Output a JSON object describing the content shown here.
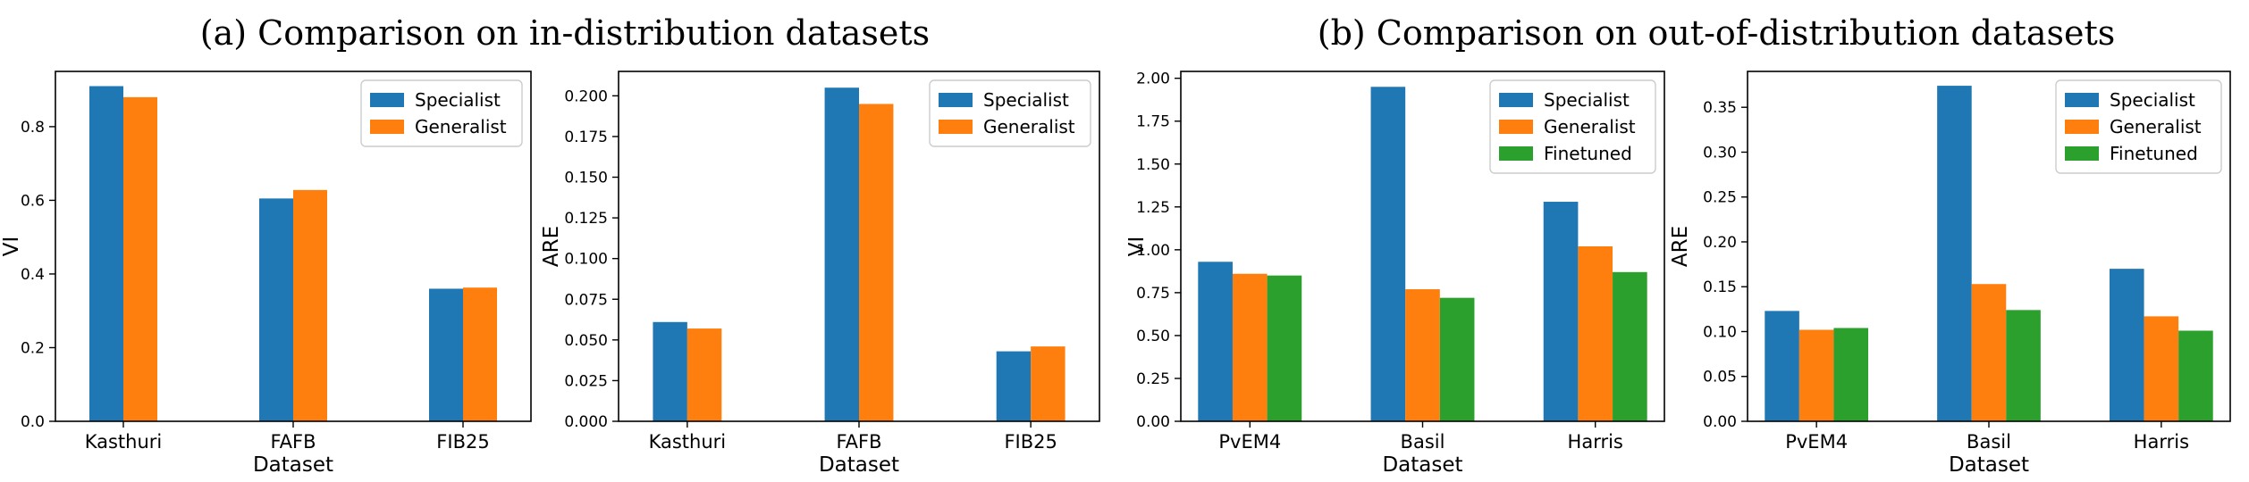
{
  "group_titles": {
    "a": "(a) Comparison on in-distribution datasets",
    "b": "(b) Comparison on out-of-distribution datasets"
  },
  "colors": {
    "Specialist": "#1f77b4",
    "Generalist": "#ff7f0e",
    "Finetuned": "#2ca02c"
  },
  "chart_data": [
    {
      "type": "bar",
      "title": "",
      "xlabel": "Dataset",
      "ylabel": "VI",
      "categories": [
        "Kasthuri",
        "FAFB",
        "FIB25"
      ],
      "ylim": [
        0,
        0.95
      ],
      "yticks": [
        0.0,
        0.2,
        0.4,
        0.6,
        0.8
      ],
      "ytick_labels": [
        "0.0",
        "0.2",
        "0.4",
        "0.6",
        "0.8"
      ],
      "legend_position": "top-right",
      "series": [
        {
          "name": "Specialist",
          "values": [
            0.91,
            0.605,
            0.36
          ]
        },
        {
          "name": "Generalist",
          "values": [
            0.88,
            0.628,
            0.363
          ]
        }
      ]
    },
    {
      "type": "bar",
      "title": "",
      "xlabel": "Dataset",
      "ylabel": "ARE",
      "categories": [
        "Kasthuri",
        "FAFB",
        "FIB25"
      ],
      "ylim": [
        0,
        0.215
      ],
      "yticks": [
        0.0,
        0.025,
        0.05,
        0.075,
        0.1,
        0.125,
        0.15,
        0.175,
        0.2
      ],
      "ytick_labels": [
        "0.000",
        "0.025",
        "0.050",
        "0.075",
        "0.100",
        "0.125",
        "0.150",
        "0.175",
        "0.200"
      ],
      "legend_position": "top-right",
      "series": [
        {
          "name": "Specialist",
          "values": [
            0.061,
            0.205,
            0.043
          ]
        },
        {
          "name": "Generalist",
          "values": [
            0.057,
            0.195,
            0.046
          ]
        }
      ]
    },
    {
      "type": "bar",
      "title": "",
      "xlabel": "Dataset",
      "ylabel": "VI",
      "categories": [
        "PvEM4",
        "Basil",
        "Harris"
      ],
      "ylim": [
        0,
        2.04
      ],
      "yticks": [
        0.0,
        0.25,
        0.5,
        0.75,
        1.0,
        1.25,
        1.5,
        1.75,
        2.0
      ],
      "ytick_labels": [
        "0.00",
        "0.25",
        "0.50",
        "0.75",
        "1.00",
        "1.25",
        "1.50",
        "1.75",
        "2.00"
      ],
      "legend_position": "top-right",
      "series": [
        {
          "name": "Specialist",
          "values": [
            0.93,
            1.95,
            1.28
          ]
        },
        {
          "name": "Generalist",
          "values": [
            0.86,
            0.77,
            1.02
          ]
        },
        {
          "name": "Finetuned",
          "values": [
            0.85,
            0.72,
            0.87
          ]
        }
      ]
    },
    {
      "type": "bar",
      "title": "",
      "xlabel": "Dataset",
      "ylabel": "ARE",
      "categories": [
        "PvEM4",
        "Basil",
        "Harris"
      ],
      "ylim": [
        0,
        0.39
      ],
      "yticks": [
        0.0,
        0.05,
        0.1,
        0.15,
        0.2,
        0.25,
        0.3,
        0.35
      ],
      "ytick_labels": [
        "0.00",
        "0.05",
        "0.10",
        "0.15",
        "0.20",
        "0.25",
        "0.30",
        "0.35"
      ],
      "legend_position": "top-right",
      "series": [
        {
          "name": "Specialist",
          "values": [
            0.123,
            0.374,
            0.17
          ]
        },
        {
          "name": "Generalist",
          "values": [
            0.102,
            0.153,
            0.117
          ]
        },
        {
          "name": "Finetuned",
          "values": [
            0.104,
            0.124,
            0.101
          ]
        }
      ]
    }
  ]
}
